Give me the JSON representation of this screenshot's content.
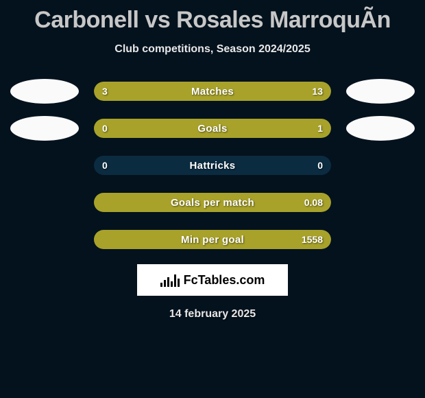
{
  "title": "Carbonell vs Rosales MarroquÃ­n",
  "subtitle": "Club competitions, Season 2024/2025",
  "date": "14 february 2025",
  "logo_text": "FcTables.com",
  "colors": {
    "background": "#04121e",
    "bar_bg": "#0b2b40",
    "bar_fill": "#a8a22a",
    "avatar_bg": "#fafafa",
    "title_color": "#c7c7c7",
    "text_color": "#e8e8e8",
    "logo_bg": "#ffffff"
  },
  "rows": [
    {
      "label": "Matches",
      "left": "3",
      "right": "13",
      "left_pct": 18.75,
      "right_pct": 81.25,
      "show_avatars": true
    },
    {
      "label": "Goals",
      "left": "0",
      "right": "1",
      "left_pct": 0,
      "right_pct": 100,
      "show_avatars": true
    },
    {
      "label": "Hattricks",
      "left": "0",
      "right": "0",
      "left_pct": 0,
      "right_pct": 0,
      "show_avatars": false
    },
    {
      "label": "Goals per match",
      "left": "",
      "right": "0.08",
      "left_pct": 0,
      "right_pct": 100,
      "show_avatars": false
    },
    {
      "label": "Min per goal",
      "left": "",
      "right": "1558",
      "left_pct": 0,
      "right_pct": 100,
      "show_avatars": false
    }
  ],
  "logo_bars": [
    6,
    10,
    14,
    8,
    18,
    12
  ]
}
